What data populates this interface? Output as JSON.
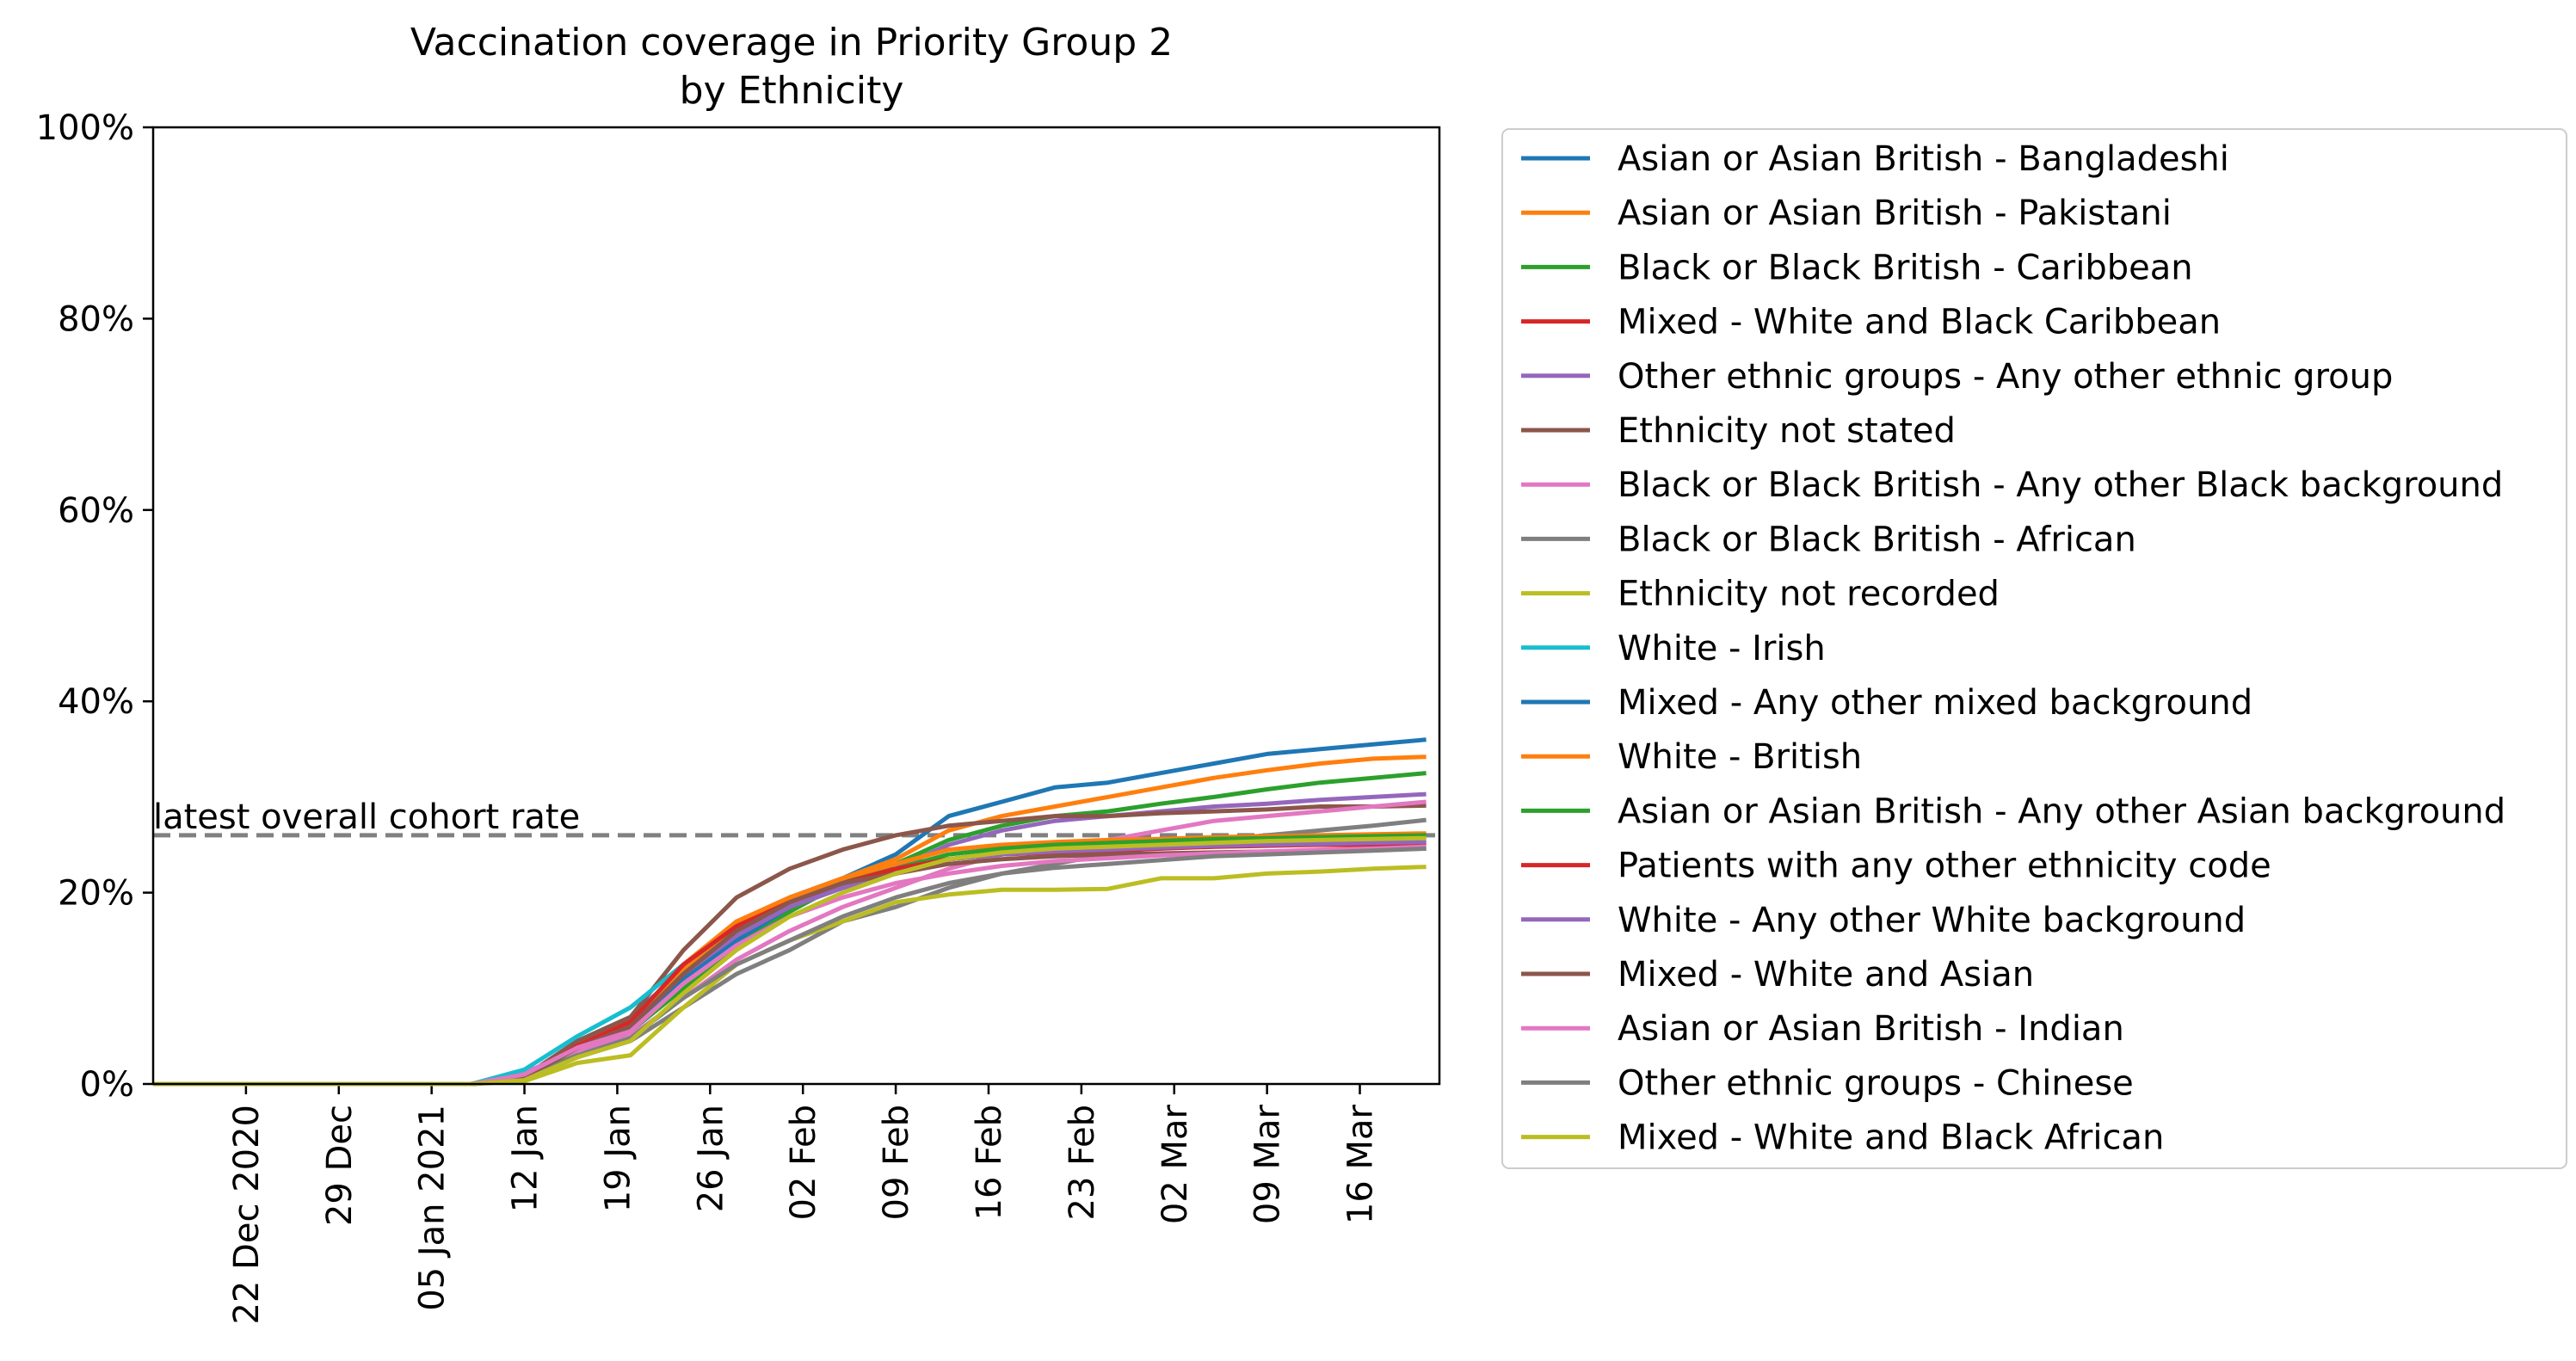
{
  "chart_data": {
    "type": "line",
    "title_line1": "Vaccination coverage in Priority Group 2",
    "title_line2": "by Ethnicity",
    "xlabel": "",
    "ylabel": "",
    "x_start": "2020-12-15",
    "x_end": "2021-03-22",
    "ylim": [
      0,
      100
    ],
    "y_ticks": [
      0,
      20,
      40,
      60,
      80,
      100
    ],
    "y_tick_labels": [
      "0%",
      "20%",
      "40%",
      "60%",
      "80%",
      "100%"
    ],
    "x_ticks": [
      {
        "date": "2020-12-22",
        "label": "22 Dec 2020"
      },
      {
        "date": "2020-12-29",
        "label": "29 Dec"
      },
      {
        "date": "2021-01-05",
        "label": "05 Jan 2021"
      },
      {
        "date": "2021-01-12",
        "label": "12 Jan"
      },
      {
        "date": "2021-01-19",
        "label": "19 Jan"
      },
      {
        "date": "2021-01-26",
        "label": "26 Jan"
      },
      {
        "date": "2021-02-02",
        "label": "02 Feb"
      },
      {
        "date": "2021-02-09",
        "label": "09 Feb"
      },
      {
        "date": "2021-02-16",
        "label": "16 Feb"
      },
      {
        "date": "2021-02-23",
        "label": "23 Feb"
      },
      {
        "date": "2021-03-02",
        "label": "02 Mar"
      },
      {
        "date": "2021-03-09",
        "label": "09 Mar"
      },
      {
        "date": "2021-03-16",
        "label": "16 Mar"
      }
    ],
    "grid": false,
    "legend_position": "outside-right",
    "reference_line": {
      "value": 26,
      "label": "latest overall cohort rate",
      "color": "#808080",
      "style": "dashed"
    },
    "x_dates": [
      "2020-12-15",
      "2021-01-08",
      "2021-01-12",
      "2021-01-16",
      "2021-01-20",
      "2021-01-24",
      "2021-01-28",
      "2021-02-01",
      "2021-02-05",
      "2021-02-09",
      "2021-02-13",
      "2021-02-17",
      "2021-02-21",
      "2021-02-25",
      "2021-03-01",
      "2021-03-05",
      "2021-03-09",
      "2021-03-13",
      "2021-03-17",
      "2021-03-21"
    ],
    "series": [
      {
        "name": "Asian or Asian British - Bangladeshi",
        "color": "#1f77b4",
        "values": [
          0,
          0,
          0.8,
          4.5,
          7,
          12,
          16.5,
          19.5,
          21.5,
          24,
          28,
          29.5,
          31,
          31.5,
          32.5,
          33.5,
          34.5,
          35,
          35.5,
          36
        ]
      },
      {
        "name": "Asian or Asian British - Pakistani",
        "color": "#ff7f0e",
        "values": [
          0,
          0,
          0.7,
          4.2,
          6.5,
          12.5,
          17,
          19.5,
          21.5,
          23.5,
          26.5,
          28,
          29,
          30,
          31,
          32,
          32.8,
          33.5,
          34,
          34.2
        ]
      },
      {
        "name": "Black or Black British - Caribbean",
        "color": "#2ca02c",
        "values": [
          0,
          0,
          0.6,
          3.5,
          5.5,
          10,
          14.5,
          18,
          21,
          23,
          25.5,
          27,
          28,
          28.5,
          29.3,
          30,
          30.8,
          31.5,
          32,
          32.5
        ]
      },
      {
        "name": "Mixed - White and Black Caribbean",
        "color": "#d62728",
        "values": [
          0,
          0,
          0.7,
          4,
          6.5,
          12,
          16,
          18.5,
          20.5,
          22,
          23.5,
          24,
          24.5,
          24.5,
          24.8,
          25,
          25,
          25.2,
          25.2,
          25.3
        ]
      },
      {
        "name": "Other ethnic groups - Any other ethnic group",
        "color": "#9467bd",
        "values": [
          0,
          0,
          0.7,
          4,
          6,
          11,
          15.5,
          18.5,
          20.5,
          22.5,
          25,
          26.5,
          27.5,
          28,
          28.5,
          29,
          29.3,
          29.7,
          30,
          30.3
        ]
      },
      {
        "name": "Ethnicity not stated",
        "color": "#8c564b",
        "values": [
          0,
          0,
          0.8,
          4.5,
          7,
          14,
          19.5,
          22.5,
          24.5,
          26,
          27,
          27.5,
          28,
          28,
          28.3,
          28.5,
          28.7,
          29,
          29,
          29.1
        ]
      },
      {
        "name": "Black or Black British - Any other Black background",
        "color": "#e377c2",
        "values": [
          0,
          0,
          1.2,
          3.5,
          5,
          9,
          13,
          16,
          18.5,
          20.5,
          22.5,
          24,
          25,
          25.5,
          26.5,
          27.5,
          28,
          28.5,
          29,
          29.5
        ]
      },
      {
        "name": "Black or Black British - African",
        "color": "#7f7f7f",
        "values": [
          0,
          0,
          0.4,
          2.8,
          4.5,
          8,
          11.5,
          14,
          17,
          18.5,
          20.5,
          22,
          23,
          24,
          24.8,
          25.5,
          26,
          26.5,
          27,
          27.6
        ]
      },
      {
        "name": "Ethnicity not recorded",
        "color": "#bcbd22",
        "values": [
          0,
          0,
          0.3,
          2.2,
          3,
          8,
          12.5,
          15,
          17,
          19,
          19.8,
          20.3,
          20.3,
          20.4,
          21.5,
          21.5,
          22,
          22.2,
          22.5,
          22.7
        ]
      },
      {
        "name": "White - Irish",
        "color": "#17becf",
        "values": [
          0,
          0,
          1.5,
          5,
          8,
          12.5,
          16,
          19,
          21,
          22.5,
          23.5,
          24,
          24.5,
          24.8,
          25,
          25.2,
          25.4,
          25.6,
          25.8,
          26
        ]
      },
      {
        "name": "Mixed - Any other mixed background",
        "color": "#1f77b4",
        "values": [
          0,
          0,
          0.6,
          4,
          6,
          11,
          15,
          18.5,
          20.5,
          22,
          23.5,
          24.2,
          24.6,
          24.8,
          25,
          25.2,
          25.4,
          25.6,
          25.7,
          25.8
        ]
      },
      {
        "name": "White - British",
        "color": "#ff7f0e",
        "values": [
          0,
          0,
          0.6,
          4,
          6.5,
          12,
          16.5,
          19.5,
          21.5,
          23,
          24.5,
          25,
          25.3,
          25.5,
          25.6,
          25.8,
          25.9,
          26,
          26.1,
          26.2
        ]
      },
      {
        "name": "Asian or Asian British - Any other Asian background",
        "color": "#2ca02c",
        "values": [
          0,
          0,
          0.6,
          3.8,
          6,
          11.5,
          16,
          19,
          21,
          22.5,
          24,
          24.6,
          25,
          25.2,
          25.4,
          25.6,
          25.7,
          25.8,
          25.9,
          26
        ]
      },
      {
        "name": "Patients with any other ethnicity code",
        "color": "#d62728",
        "values": [
          0,
          0,
          0.6,
          4,
          6.5,
          12.5,
          16.5,
          19,
          21,
          22.5,
          23.5,
          24,
          24.2,
          24.4,
          24.6,
          24.8,
          24.9,
          25,
          25,
          25.1
        ]
      },
      {
        "name": "White - Any other White background",
        "color": "#9467bd",
        "values": [
          0,
          0,
          0.6,
          3.8,
          6,
          11.5,
          15.5,
          18.5,
          20.5,
          22,
          23.5,
          24,
          24.3,
          24.5,
          24.7,
          24.9,
          25,
          25.1,
          25.2,
          25.3
        ]
      },
      {
        "name": "Mixed - White and Asian",
        "color": "#8c564b",
        "values": [
          0,
          0,
          0.6,
          3.8,
          6,
          11.5,
          16,
          19,
          21,
          22,
          23,
          23.5,
          23.8,
          24,
          24.1,
          24.2,
          24.3,
          24.4,
          24.5,
          24.6
        ]
      },
      {
        "name": "Asian or Asian British - Indian",
        "color": "#e377c2",
        "values": [
          0,
          0,
          1,
          3.8,
          5.5,
          10.5,
          14.5,
          17.5,
          19.5,
          21,
          22,
          22.8,
          23.3,
          23.6,
          23.9,
          24.1,
          24.3,
          24.5,
          24.6,
          24.8
        ]
      },
      {
        "name": "Other ethnic groups - Chinese",
        "color": "#7f7f7f",
        "values": [
          0,
          0,
          0.4,
          3,
          4.8,
          9,
          12.5,
          15,
          17.5,
          19.5,
          21,
          22,
          22.6,
          23,
          23.4,
          23.8,
          24,
          24.2,
          24.4,
          24.6
        ]
      },
      {
        "name": "Mixed - White and Black African",
        "color": "#bcbd22",
        "values": [
          0,
          0,
          0.4,
          2.8,
          4.5,
          9.5,
          14,
          17.5,
          20,
          22,
          23.5,
          24.2,
          24.6,
          24.8,
          25,
          25.2,
          25.4,
          25.5,
          25.6,
          25.7
        ]
      }
    ]
  }
}
